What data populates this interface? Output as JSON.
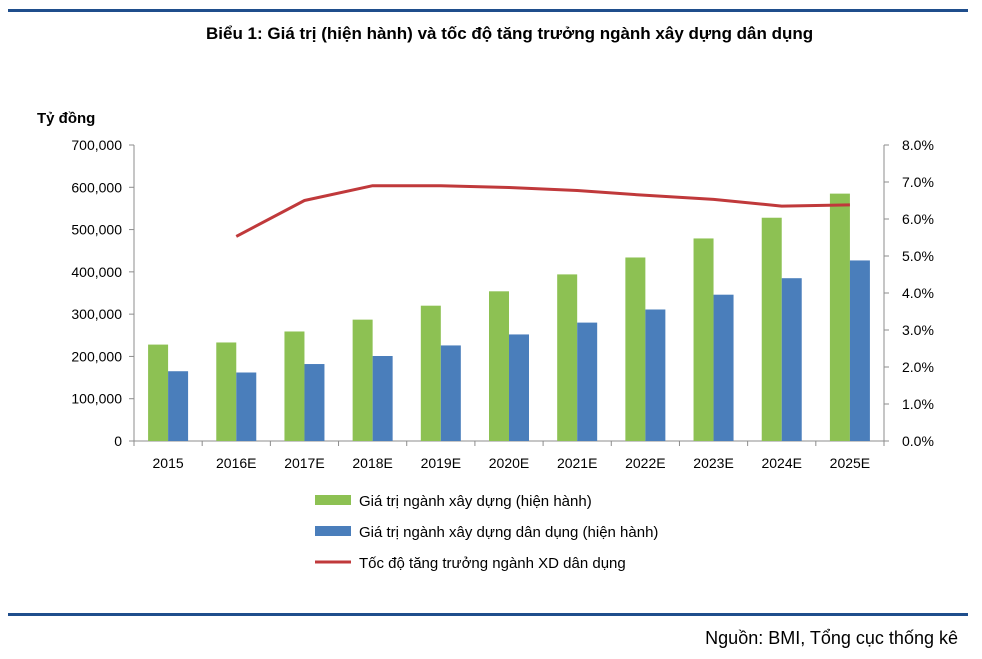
{
  "header": {
    "title": "Biểu 1: Giá trị (hiện hành) và tốc độ tăng trưởng ngành xây dựng dân dụng"
  },
  "footer": {
    "source": "Nguồn: BMI, Tổng cục thống kê"
  },
  "colors": {
    "construction_value": "#8dc153",
    "civil_construction_value": "#4a7ebb",
    "growth_rate": "#c0393b",
    "rule": "#1f4e8c"
  },
  "chart_data": {
    "type": "bar",
    "title": "Biểu 1: Giá trị (hiện hành) và tốc độ tăng trưởng ngành xây dựng dân dụng",
    "ylabel": "Tỷ đồng",
    "categories": [
      "2015",
      "2016E",
      "2017E",
      "2018E",
      "2019E",
      "2020E",
      "2021E",
      "2022E",
      "2023E",
      "2024E",
      "2025E"
    ],
    "ylim": [
      0,
      700000
    ],
    "y_ticks": [
      "0",
      "100,000",
      "200,000",
      "300,000",
      "400,000",
      "500,000",
      "600,000",
      "700,000"
    ],
    "y2lim": [
      0,
      0.08
    ],
    "y2_ticks": [
      "0.0%",
      "1.0%",
      "2.0%",
      "3.0%",
      "4.0%",
      "5.0%",
      "6.0%",
      "7.0%",
      "8.0%"
    ],
    "grid": false,
    "legend_position": "bottom",
    "series": [
      {
        "name": "Giá trị ngành xây dựng (hiện hành)",
        "type": "bar",
        "axis": "left",
        "values": [
          228000,
          233000,
          259000,
          287000,
          320000,
          354000,
          394000,
          434000,
          479000,
          528000,
          585000
        ]
      },
      {
        "name": "Giá trị ngành xây dựng dân dụng (hiện hành)",
        "type": "bar",
        "axis": "left",
        "values": [
          165000,
          162000,
          182000,
          201000,
          226000,
          252000,
          280000,
          311000,
          346000,
          385000,
          427000
        ]
      },
      {
        "name": "Tốc độ tăng trưởng ngành XD dân dụng",
        "type": "line",
        "axis": "right",
        "values": [
          null,
          0.0553,
          0.065,
          0.069,
          0.069,
          0.0685,
          0.0677,
          0.0664,
          0.0653,
          0.0635,
          0.0638
        ]
      }
    ]
  }
}
